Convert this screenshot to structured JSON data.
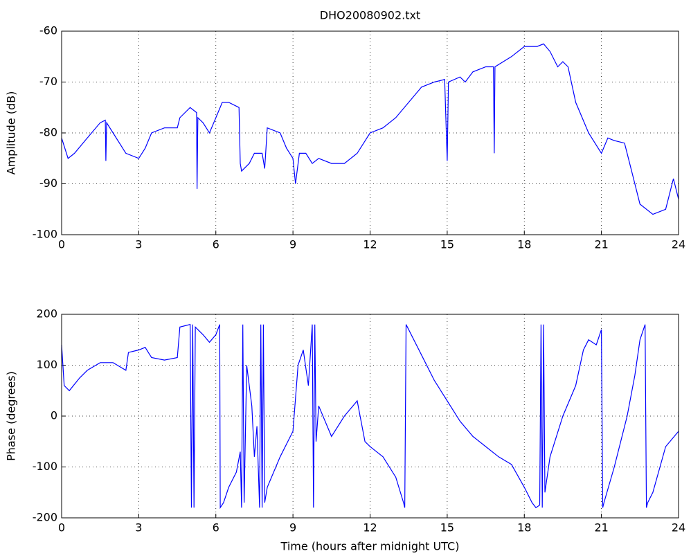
{
  "chart_data": [
    {
      "type": "line",
      "title": "DHO20080902.txt",
      "ylabel": "Amplitude (dB)",
      "x": [
        0,
        0.25,
        0.5,
        1,
        1.5,
        1.7,
        1.72,
        1.75,
        2,
        2.5,
        3,
        3.25,
        3.5,
        4,
        4.5,
        4.6,
        5,
        5.25,
        5.27,
        5.3,
        5.5,
        5.75,
        6,
        6.25,
        6.5,
        6.9,
        6.95,
        7,
        7.3,
        7.5,
        7.8,
        7.9,
        8,
        8.5,
        8.75,
        9,
        9.1,
        9.25,
        9.5,
        9.75,
        10,
        10.5,
        11,
        11.5,
        12,
        12.5,
        13,
        13.5,
        14,
        14.5,
        14.9,
        15,
        15.05,
        15.5,
        15.7,
        16,
        16.5,
        16.8,
        16.83,
        16.86,
        17.5,
        18,
        18.5,
        18.75,
        19,
        19.3,
        19.5,
        19.7,
        20,
        20.5,
        21,
        21.25,
        21.5,
        21.9,
        22.2,
        22.5,
        23,
        23.5,
        23.8,
        24
      ],
      "series": [
        {
          "color": "#0000ff",
          "values": [
            -81,
            -85,
            -84,
            -81,
            -78,
            -77.5,
            -85.5,
            -78,
            -80,
            -84,
            -85,
            -83,
            -80,
            -79,
            -79,
            -77,
            -75,
            -76,
            -91,
            -77,
            -78,
            -80,
            -77,
            -74,
            -74,
            -75,
            -86,
            -87.5,
            -86,
            -84,
            -84,
            -87,
            -79,
            -80,
            -83,
            -85,
            -90,
            -84,
            -84,
            -86,
            -85,
            -86,
            -86,
            -84,
            -80,
            -79,
            -77,
            -74,
            -71,
            -70,
            -69.5,
            -85.5,
            -70,
            -69,
            -70,
            -68,
            -67,
            -67,
            -84,
            -67,
            -65,
            -63,
            -63,
            -62.5,
            -64,
            -67,
            -66,
            -67,
            -74,
            -80,
            -84,
            -81,
            -81.5,
            -82,
            -88,
            -94,
            -96,
            -95,
            -89,
            -93
          ]
        }
      ],
      "xlim": [
        0,
        24
      ],
      "xticks": [
        0,
        3,
        6,
        9,
        12,
        15,
        18,
        21,
        24
      ],
      "ylim": [
        -100,
        -60
      ],
      "yticks": [
        -100,
        -90,
        -80,
        -70,
        -60
      ],
      "grid": true
    },
    {
      "type": "line",
      "xlabel": "Time (hours after midnight UTC)",
      "ylabel": "Phase (degrees)",
      "x": [
        0,
        0.1,
        0.3,
        0.7,
        1,
        1.5,
        2,
        2.5,
        2.6,
        3,
        3.25,
        3.5,
        4,
        4.5,
        4.6,
        5,
        5.05,
        5.1,
        5.15,
        5.2,
        5.5,
        5.75,
        6,
        6.15,
        6.17,
        6.3,
        6.5,
        6.8,
        6.95,
        7,
        7.05,
        7.1,
        7.2,
        7.4,
        7.5,
        7.6,
        7.7,
        7.75,
        7.8,
        7.85,
        7.9,
        8,
        8.5,
        9,
        9.2,
        9.4,
        9.6,
        9.75,
        9.8,
        9.85,
        9.9,
        10,
        10.5,
        11,
        11.5,
        11.8,
        12,
        12.5,
        13,
        13.3,
        13.35,
        13.4,
        14,
        14.5,
        15,
        15.5,
        16,
        16.5,
        17,
        17.5,
        18,
        18.3,
        18.45,
        18.6,
        18.65,
        18.7,
        18.75,
        18.8,
        19,
        19.5,
        20,
        20.3,
        20.5,
        20.8,
        21,
        21.05,
        21.1,
        21.5,
        22,
        22.3,
        22.5,
        22.7,
        22.75,
        22.8,
        23,
        23.5,
        24
      ],
      "series": [
        {
          "color": "#0000ff",
          "values": [
            140,
            60,
            50,
            75,
            90,
            105,
            105,
            90,
            125,
            130,
            135,
            115,
            110,
            115,
            175,
            180,
            -180,
            180,
            -180,
            175,
            160,
            145,
            160,
            180,
            -180,
            -170,
            -140,
            -110,
            -70,
            -180,
            180,
            -170,
            100,
            20,
            -80,
            -20,
            -180,
            180,
            -180,
            180,
            -170,
            -140,
            -80,
            -30,
            100,
            130,
            60,
            180,
            -180,
            180,
            -50,
            20,
            -40,
            0,
            30,
            -50,
            -60,
            -80,
            -120,
            -170,
            -180,
            180,
            120,
            70,
            30,
            -10,
            -40,
            -60,
            -80,
            -95,
            -140,
            -170,
            -180,
            -175,
            180,
            -180,
            180,
            -150,
            -80,
            0,
            60,
            130,
            150,
            140,
            170,
            -180,
            -170,
            -100,
            0,
            80,
            150,
            180,
            -180,
            -170,
            -150,
            -60,
            -30
          ]
        }
      ],
      "xlim": [
        0,
        24
      ],
      "xticks": [
        0,
        3,
        6,
        9,
        12,
        15,
        18,
        21,
        24
      ],
      "ylim": [
        -200,
        200
      ],
      "yticks": [
        -200,
        -100,
        0,
        100,
        200
      ],
      "grid": true
    }
  ]
}
